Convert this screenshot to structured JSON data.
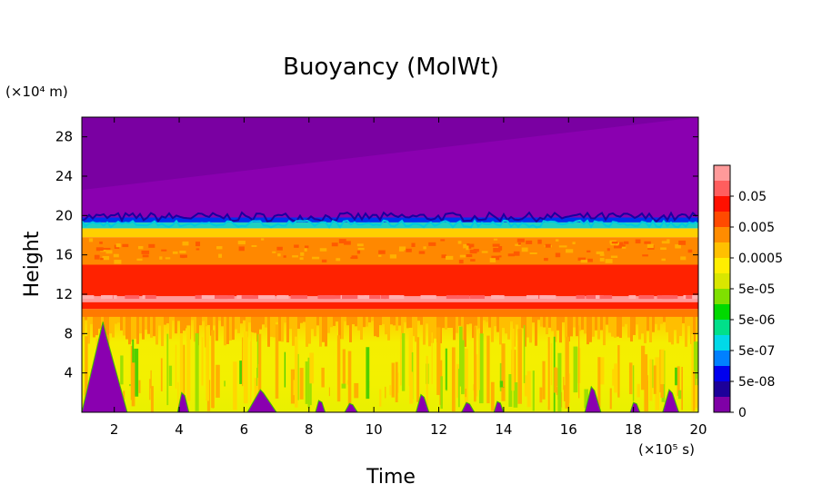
{
  "chart_data": {
    "type": "heatmap",
    "title": "Buoyancy (MolWt)",
    "xlabel": "Time",
    "ylabel": "Height",
    "x_multiplier": "(×10⁵ s)",
    "y_multiplier": "(×10⁴ m)",
    "xlim": [
      1,
      20
    ],
    "ylim": [
      0,
      30
    ],
    "x_ticks": [
      "2",
      "4",
      "6",
      "8",
      "10",
      "12",
      "14",
      "16",
      "18",
      "20"
    ],
    "x_tick_values": [
      2,
      4,
      6,
      8,
      10,
      12,
      14,
      16,
      18,
      20
    ],
    "y_ticks": [
      "4",
      "8",
      "12",
      "16",
      "20",
      "24",
      "28"
    ],
    "y_tick_values": [
      4,
      8,
      12,
      16,
      20,
      24,
      28
    ],
    "colorbar": {
      "labels": [
        "0",
        "5e-08",
        "5e-07",
        "5e-06",
        "5e-05",
        "0.0005",
        "0.005",
        "0.05"
      ],
      "colors": [
        "#7f00a6",
        "#1c0099",
        "#0000ee",
        "#0080ff",
        "#00d9e8",
        "#00e08a",
        "#00d900",
        "#7fe000",
        "#d9e600",
        "#ffee00",
        "#ffc000",
        "#ff8c00",
        "#ff4a00",
        "#ff1000",
        "#ff5e5e",
        "#ff9a9a"
      ]
    },
    "bands": [
      {
        "y0": 0,
        "y1": 9.5,
        "color": "#f2ea00",
        "description": "lower mixed layer, ~0.0005-0.001"
      },
      {
        "y0": 9.5,
        "y1": 10.5,
        "color": "#ff7a00",
        "description": "~0.005"
      },
      {
        "y0": 10.5,
        "y1": 11.2,
        "color": "#ff2000",
        "description": "~0.01"
      },
      {
        "y0": 11.2,
        "y1": 11.8,
        "color": "#ff9a9a",
        "description": "~0.05"
      },
      {
        "y0": 11.8,
        "y1": 15,
        "color": "#ff2200",
        "description": "~0.01"
      },
      {
        "y0": 15,
        "y1": 17.8,
        "color": "#ff8800",
        "description": "~0.003"
      },
      {
        "y0": 17.8,
        "y1": 18.7,
        "color": "#ffd000",
        "description": "~0.0005"
      },
      {
        "y0": 18.7,
        "y1": 19.3,
        "color": "#20d0c0",
        "description": "~5e-06"
      },
      {
        "y0": 19.3,
        "y1": 19.8,
        "color": "#0030ee",
        "description": "~5e-08"
      },
      {
        "y0": 19.8,
        "y1": 30,
        "color": "#8a00b0",
        "description": "0"
      }
    ]
  }
}
